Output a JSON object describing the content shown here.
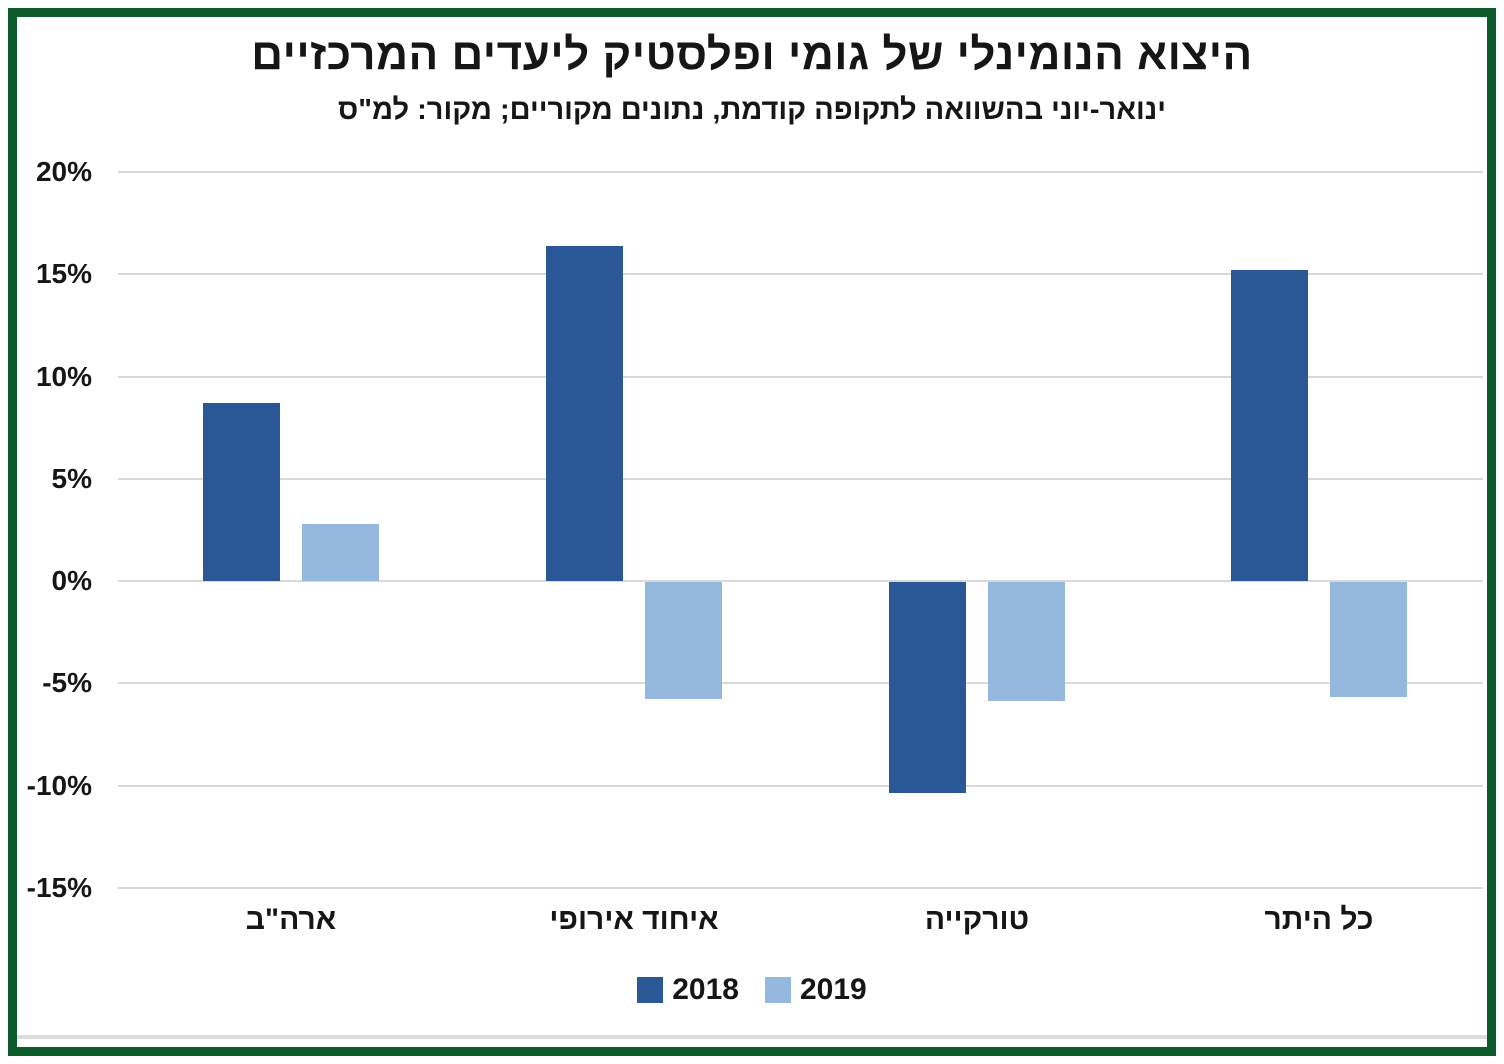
{
  "title": "היצוא הנומינלי של גומי ופלסטיק ליעדים המרכזיים",
  "subtitle": "ינואר-יוני בהשוואה לתקופה קודמת, נתונים מקוריים; מקור: למ\"ס",
  "chart_data": {
    "type": "bar",
    "title": "היצוא הנומינלי של גומי ופלסטיק ליעדים המרכזיים",
    "subtitle": "ינואר-יוני בהשוואה לתקופה קודמת, נתונים מקוריים; מקור: למ\"ס",
    "categories": [
      "ארה\"ב",
      "איחוד אירופי",
      "טורקייה",
      "כל היתר"
    ],
    "series": [
      {
        "name": "2018",
        "color": "#2a5796",
        "values": [
          8.7,
          16.4,
          -10.3,
          15.2
        ]
      },
      {
        "name": "2019",
        "color": "#95b8df",
        "values": [
          2.8,
          -5.7,
          -5.8,
          -5.6
        ]
      }
    ],
    "ylim": [
      -15,
      20
    ],
    "ytick_step": 5,
    "yticks": [
      20,
      15,
      10,
      5,
      0,
      -5,
      -10,
      -15
    ],
    "ytick_labels": [
      "20%",
      "15%",
      "10%",
      "5%",
      "0%",
      "-5%",
      "-10%",
      "-15%"
    ],
    "grid": true,
    "legend_position": "bottom"
  },
  "colors": {
    "frame_border": "#0b5b2b",
    "gridline": "#d9d9d9",
    "text": "#161616",
    "series_2018": "#2a5796",
    "series_2019": "#95b8df"
  }
}
